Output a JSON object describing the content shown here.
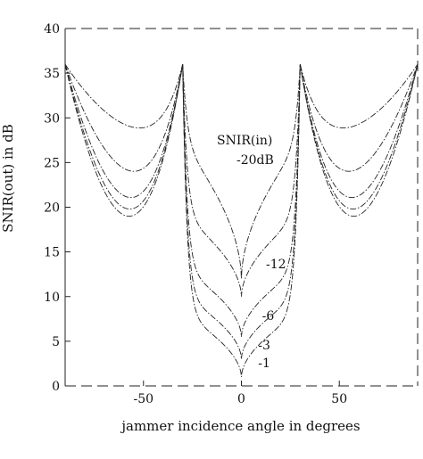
{
  "chart_data": {
    "type": "line",
    "xlabel": "jammer incidence angle in degrees",
    "ylabel": "SNIR(out) in dB",
    "xlim": [
      -90,
      90
    ],
    "ylim": [
      0,
      40
    ],
    "xticks": [
      -50,
      0,
      50
    ],
    "yticks": [
      0,
      5,
      10,
      15,
      20,
      25,
      30,
      35,
      40
    ],
    "grid": false,
    "legend_title": "SNIR(in)",
    "peak_angles": [
      -30,
      30
    ],
    "peak_value": 36,
    "series": [
      {
        "name": "-20dB",
        "min_value": 27,
        "value_at_zero": 12,
        "label_angle": 2
      },
      {
        "name": "-12",
        "min_value": 19,
        "value_at_zero": 10,
        "label_angle": 8
      },
      {
        "name": "-6",
        "min_value": 13,
        "value_at_zero": 5.5,
        "label_angle": 6
      },
      {
        "name": "-3",
        "min_value": 10,
        "value_at_zero": 3,
        "label_angle": 4
      },
      {
        "name": "-1",
        "min_value": 8,
        "value_at_zero": 1,
        "label_angle": 4
      }
    ]
  }
}
